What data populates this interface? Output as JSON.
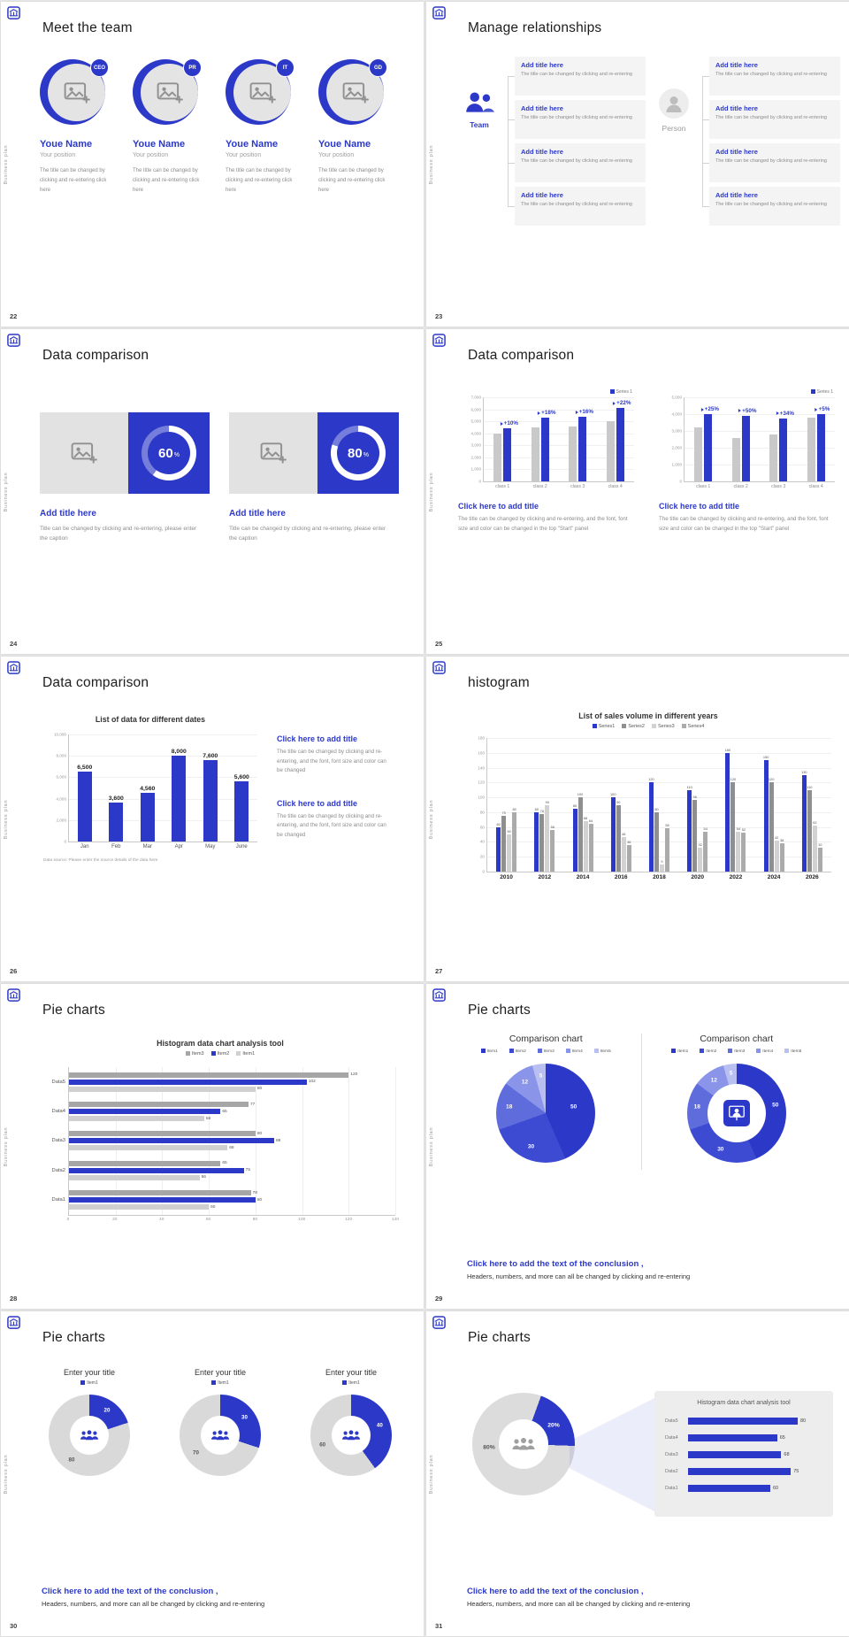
{
  "common": {
    "sidebar_text": "Business plan",
    "accent": "#2c39c8",
    "bar_gray": "#c9c9c9"
  },
  "slides": {
    "s22": {
      "page": "22",
      "title": "Meet the team",
      "members": [
        {
          "badge": "CEO",
          "name": "Youe Name",
          "position": "Your position",
          "desc": "The title can be changed by clicking and re-entering click here"
        },
        {
          "badge": "PR",
          "name": "Youe Name",
          "position": "Your position",
          "desc": "The title can be changed by clicking and re-entering click here"
        },
        {
          "badge": "IT",
          "name": "Youe Name",
          "position": "Your position",
          "desc": "The title can be changed by clicking and re-entering click here"
        },
        {
          "badge": "GD",
          "name": "Youe Name",
          "position": "Your position",
          "desc": "The title can be changed by clicking and re-entering click here"
        }
      ]
    },
    "s23": {
      "page": "23",
      "title": "Manage relationships",
      "groups": [
        {
          "label": "Team",
          "style": "team",
          "items": [
            {
              "title": "Add title here",
              "text": "The title can be changed by clicking and re-entering"
            },
            {
              "title": "Add title here",
              "text": "The title can be changed by clicking and re-entering"
            },
            {
              "title": "Add title here",
              "text": "The title can be changed by clicking and re-entering"
            },
            {
              "title": "Add title here",
              "text": "The title can be changed by clicking and re-entering"
            }
          ]
        },
        {
          "label": "Person",
          "style": "person",
          "items": [
            {
              "title": "Add title here",
              "text": "The title can be changed by clicking and re-entering"
            },
            {
              "title": "Add title here",
              "text": "The title can be changed by clicking and re-entering"
            },
            {
              "title": "Add title here",
              "text": "The title can be changed by clicking and re-entering"
            },
            {
              "title": "Add title here",
              "text": "The title can be changed by clicking and re-entering"
            }
          ]
        }
      ]
    },
    "s24": {
      "page": "24",
      "title": "Data comparison",
      "cards": [
        {
          "percent": 60,
          "title": "Add title here",
          "text": "Title can be changed by clicking and re-entering, please enter the caption"
        },
        {
          "percent": 80,
          "title": "Add title here",
          "text": "Title can be changed by clicking and re-entering, please enter the caption"
        }
      ]
    },
    "s25": {
      "page": "25",
      "title": "Data comparison",
      "blocks": [
        {
          "legend": "Series 1",
          "ymax": 7000,
          "yticks": [
            "7,000",
            "6,000",
            "5,000",
            "4,000",
            "3,000",
            "2,000",
            "1,000",
            "0"
          ],
          "categories": [
            "class 1",
            "class 2",
            "class 3",
            "class 4"
          ],
          "base": [
            4000,
            4500,
            4600,
            5000
          ],
          "value": [
            4400,
            5300,
            5350,
            6100
          ],
          "growth": [
            "+10%",
            "+18%",
            "+16%",
            "+22%"
          ],
          "note_title": "Click here to add title",
          "note_text": "The title can be changed by clicking and re-entering, and the font, font size and color can be changed in the top \"Start\" panel"
        },
        {
          "legend": "Series 1",
          "ymax": 5000,
          "yticks": [
            "5,000",
            "4,000",
            "3,000",
            "2,000",
            "1,000",
            "0"
          ],
          "categories": [
            "class 1",
            "class 2",
            "class 3",
            "class 4"
          ],
          "base": [
            3200,
            2600,
            2800,
            3800
          ],
          "value": [
            4000,
            3900,
            3750,
            4000
          ],
          "growth": [
            "+25%",
            "+50%",
            "+34%",
            "+5%"
          ],
          "note_title": "Click here to add title",
          "note_text": "The title can be changed by clicking and re-entering, and the font, font size and color can be changed in the top \"Start\" panel"
        }
      ]
    },
    "s26": {
      "page": "26",
      "title": "Data comparison",
      "chart": {
        "title": "List of data for different dates",
        "ymax": 10000,
        "yticks": [
          "10,000",
          "8,000",
          "6,000",
          "4,000",
          "2,000",
          "0"
        ],
        "categories": [
          "Jan",
          "Feb",
          "Mar",
          "Apr",
          "May",
          "June"
        ],
        "values": [
          6500,
          3600,
          4560,
          8000,
          7600,
          5600
        ],
        "value_labels": [
          "6,500",
          "3,600",
          "4,560",
          "8,000",
          "7,600",
          "5,600"
        ],
        "caption": "Data source: Please enter the source details of the data here"
      },
      "notes": [
        {
          "title": "Click here to add title",
          "text": "The title can be changed by clicking and re-entering, and the font, font size and color can be changed"
        },
        {
          "title": "Click here to add title",
          "text": "The title can be changed by clicking and re-entering, and the font, font size and color can be changed"
        }
      ]
    },
    "s27": {
      "page": "27",
      "title": "histogram",
      "chart": {
        "title": "List of sales volume in different years",
        "legend": [
          "Series1",
          "Series2",
          "Series3",
          "Series4"
        ],
        "colors": [
          "#2c39c8",
          "#8f8f8f",
          "#d2d2d2",
          "#ababab"
        ],
        "ymax": 180,
        "yticks": [
          "180",
          "160",
          "140",
          "120",
          "100",
          "80",
          "60",
          "40",
          "20",
          "0"
        ],
        "categories": [
          "2010",
          "2012",
          "2014",
          "2016",
          "2018",
          "2020",
          "2022",
          "2024",
          "2026"
        ],
        "series": [
          {
            "name": "Series1",
            "values": [
              60,
              80,
              85,
              100,
              120,
              110,
              160,
              150,
              130
            ]
          },
          {
            "name": "Series2",
            "values": [
              75,
              78,
              100,
              90,
              80,
              96,
              120,
              120,
              110
            ]
          },
          {
            "name": "Series3",
            "values": [
              50,
              90,
              68,
              46,
              9,
              32,
              54,
              42,
              62
            ]
          },
          {
            "name": "Series4",
            "values": [
              80,
              56,
              64,
              36,
              58,
              54,
              52,
              38,
              32
            ]
          }
        ]
      }
    },
    "s28": {
      "page": "28",
      "title": "Pie charts",
      "chart": {
        "title": "Histogram data chart analysis tool",
        "legend": [
          {
            "name": "Item3",
            "color": "#a6a6a6"
          },
          {
            "name": "Item2",
            "color": "#2c39c8"
          },
          {
            "name": "Item1",
            "color": "#d0d0d0"
          }
        ],
        "xmax": 140,
        "xticks": [
          "0",
          "20",
          "40",
          "60",
          "80",
          "100",
          "120",
          "140"
        ],
        "categories": [
          "Data5",
          "Data4",
          "Data3",
          "Data2",
          "Data1"
        ],
        "rows": [
          [
            120,
            102,
            80
          ],
          [
            77,
            65,
            58
          ],
          [
            80,
            88,
            68
          ],
          [
            65,
            75,
            56
          ],
          [
            78,
            80,
            60
          ]
        ]
      }
    },
    "s29": {
      "page": "29",
      "title": "Pie charts",
      "colors": [
        "#2c39c8",
        "#3d4bd2",
        "#5f6cdc",
        "#8a94e8",
        "#b9c0f1"
      ],
      "charts": [
        {
          "style": "pie",
          "title": "Comparison chart",
          "legend": [
            "Item1",
            "Item2",
            "Item3",
            "Item4",
            "Item5"
          ],
          "values": [
            50,
            30,
            18,
            12,
            5
          ]
        },
        {
          "style": "donut",
          "title": "Comparison chart",
          "legend": [
            "Item1",
            "Item2",
            "Item3",
            "Item4",
            "Item5"
          ],
          "values": [
            50,
            30,
            18,
            12,
            5
          ]
        }
      ],
      "conclusion_bold": "Click here to add the text of the conclusion ,",
      "conclusion_text": "Headers, numbers, and more can all be changed by clicking and re-entering"
    },
    "s30": {
      "page": "30",
      "title": "Pie charts",
      "charts": [
        {
          "title": "Enter your title",
          "legend": "Item1",
          "value": 20,
          "rest": 80
        },
        {
          "title": "Enter your title",
          "legend": "Item1",
          "value": 30,
          "rest": 70
        },
        {
          "title": "Enter your title",
          "legend": "Item1",
          "value": 40,
          "rest": 60
        }
      ],
      "conclusion_bold": "Click here to add the text of the conclusion ,",
      "conclusion_text": "Headers, numbers, and more can all be changed by clicking and re-entering"
    },
    "s31": {
      "page": "31",
      "title": "Pie charts",
      "donut": {
        "blue_value": 20,
        "gray_value": 80,
        "blue_label": "20%",
        "gray_label": "80%"
      },
      "panel": {
        "title": "Histogram data chart analysis tool",
        "categories": [
          "Data5",
          "Data4",
          "Data3",
          "Data2",
          "Data1"
        ],
        "values": [
          80,
          65,
          68,
          75,
          60
        ]
      },
      "conclusion_bold": "Click here to add the text of the conclusion ,",
      "conclusion_text": "Headers, numbers, and more can all be changed by clicking and re-entering"
    }
  }
}
